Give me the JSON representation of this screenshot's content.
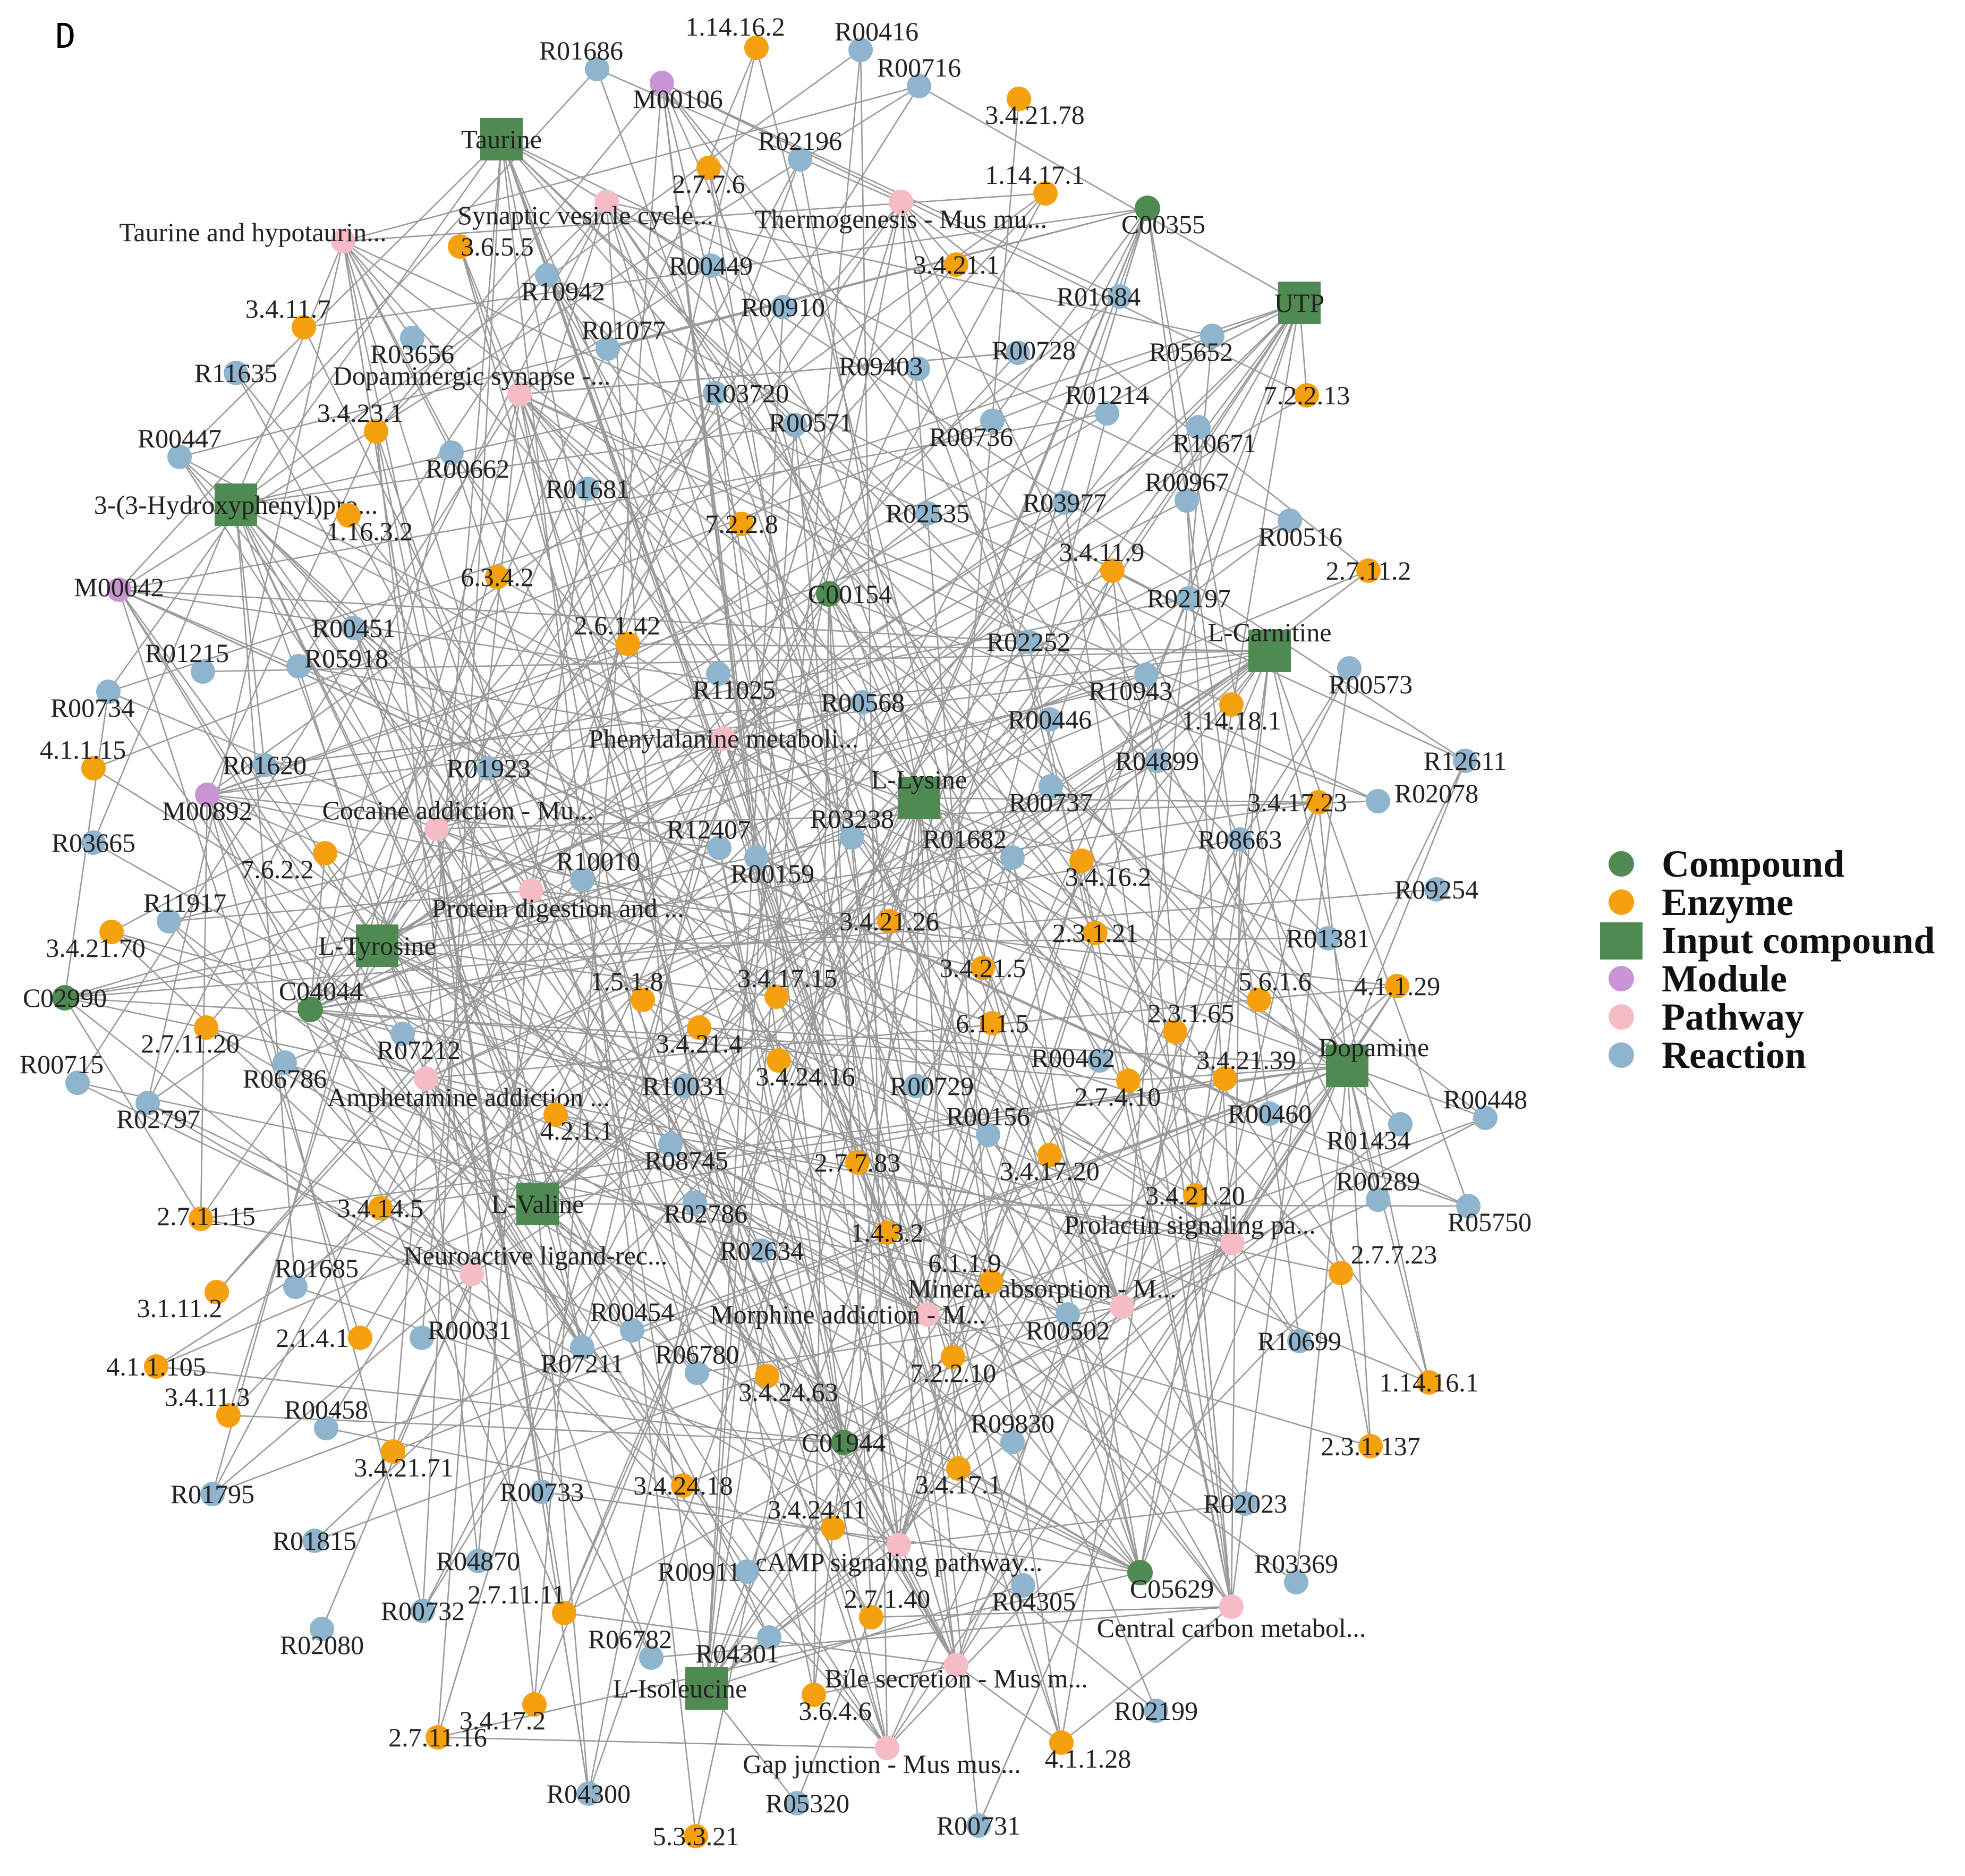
{
  "panel_letter": "D",
  "colors": {
    "Compound": "#4f8a52",
    "Enzyme": "#f5a00f",
    "Input compound": "#4f8a52",
    "Module": "#c994d3",
    "Pathway": "#f6bcc6",
    "Reaction": "#8fb4cd",
    "edge": "#9a9a9a"
  },
  "legend": [
    {
      "label": "Compound",
      "type": "Compound"
    },
    {
      "label": "Enzyme",
      "type": "Enzyme"
    },
    {
      "label": "Input compound",
      "type": "Input compound"
    },
    {
      "label": "Module",
      "type": "Module"
    },
    {
      "label": "Pathway",
      "type": "Pathway"
    },
    {
      "label": "Reaction",
      "type": "Reaction"
    }
  ],
  "input_compounds": [
    "Taurine",
    "UTP",
    "3-(3-Hydroxyphenyl)pro...",
    "L-Carnitine",
    "L-Lysine",
    "L-Tyrosine",
    "Dopamine",
    "L-Valine",
    "L-Isoleucine"
  ],
  "compounds": [
    "C00355",
    "C00154",
    "C02990",
    "C04044",
    "C01944",
    "C05629"
  ],
  "modules": [
    "M00106",
    "M00042",
    "M00892"
  ],
  "pathways": [
    "Synaptic vesicle cycle...",
    "Thermogenesis - Mus mu...",
    "Taurine and hypotaurin...",
    "Dopaminergic synapse -...",
    "Phenylalanine metaboli...",
    "Cocaine addiction - Mu...",
    "Protein digestion and ...",
    "Amphetamine addiction ...",
    "Neuroactive ligand-rec...",
    "Prolactin signaling pa...",
    "Mineral absorption - M...",
    "Morphine addiction - M...",
    "cAMP signaling pathway...",
    "Central carbon metabol...",
    "Bile secretion - Mus m...",
    "Gap junction - Mus mus..."
  ],
  "enzymes": [
    "1.14.16.2",
    "3.4.21.78",
    "2.7.7.6",
    "1.14.17.1",
    "3.6.5.5",
    "3.4.21.1",
    "3.4.11.7",
    "7.2.2.13",
    "3.4.23.1",
    "1.16.3.2",
    "7.2.2.8",
    "6.3.4.2",
    "3.4.11.9",
    "2.7.11.2",
    "2.6.1.42",
    "1.14.18.1",
    "4.1.1.15",
    "3.4.17.23",
    "7.6.2.2",
    "3.4.16.2",
    "3.4.21.70",
    "3.4.21.26",
    "2.3.1.21",
    "3.4.21.5",
    "1.5.1.8",
    "3.4.17.15",
    "5.6.1.6",
    "4.1.1.29",
    "2.7.11.20",
    "3.4.21.4",
    "6.1.1.5",
    "2.3.1.65",
    "3.4.24.16",
    "3.4.21.39",
    "2.7.4.10",
    "4.2.1.1",
    "3.4.17.20",
    "2.7.7.83",
    "3.4.21.20",
    "2.7.11.15",
    "3.4.14.5",
    "1.4.3.2",
    "2.7.7.23",
    "3.1.11.2",
    "6.1.1.9",
    "2.1.4.1",
    "4.1.1.105",
    "7.2.2.10",
    "3.4.24.63",
    "1.14.16.1",
    "3.4.11.3",
    "3.4.21.71",
    "3.4.17.1",
    "2.3.1.137",
    "3.4.24.18",
    "3.4.24.11",
    "2.7.11.11",
    "2.7.1.40",
    "3.4.17.2",
    "3.6.4.6",
    "2.7.11.16",
    "4.1.1.28",
    "5.3.3.21"
  ],
  "reactions": [
    "R01686",
    "R00416",
    "R00716",
    "R02196",
    "R10942",
    "R00449",
    "R00910",
    "R01684",
    "R03656",
    "R01077",
    "R05652",
    "R11635",
    "R09403",
    "R00728",
    "R03720",
    "R00571",
    "R01214",
    "R00447",
    "R00662",
    "R01681",
    "R00736",
    "R10671",
    "R03977",
    "R00967",
    "R02535",
    "R00516",
    "R02197",
    "R00451",
    "R05918",
    "R01215",
    "R02252",
    "R00573",
    "R11025",
    "R00568",
    "R10943",
    "R00734",
    "R00446",
    "R01620",
    "R01923",
    "R04899",
    "R12611",
    "R00737",
    "R02078",
    "R03665",
    "R12407",
    "R03238",
    "R08663",
    "R01682",
    "R00159",
    "R10010",
    "R09254",
    "R11917",
    "R01381",
    "R07212",
    "R00715",
    "R06786",
    "R02797",
    "R10031",
    "R00729",
    "R00462",
    "R00156",
    "R00460",
    "R08745",
    "R01434",
    "R00448",
    "R00289",
    "R02786",
    "R05750",
    "R02634",
    "R01685",
    "R00454",
    "R00031",
    "R00502",
    "R07211",
    "R06780",
    "R10699",
    "R00458",
    "R09830",
    "R01795",
    "R00733",
    "R02023",
    "R01815",
    "R03369",
    "R04870",
    "R00911",
    "R00732",
    "R04305",
    "R06782",
    "R04301",
    "R02080",
    "R02199",
    "R04300",
    "R05320",
    "R00731"
  ]
}
